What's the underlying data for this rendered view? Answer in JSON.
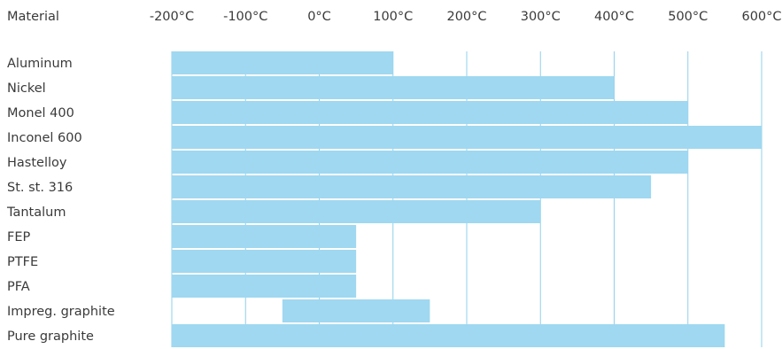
{
  "chart_data": {
    "type": "bar",
    "orientation": "horizontal-range",
    "category_header": "Material",
    "x_tick_labels": [
      "-200°C",
      "-100°C",
      "0°C",
      "100°C",
      "200°C",
      "300°C",
      "400°C",
      "500°C",
      "600°C"
    ],
    "x_ticks": [
      -200,
      -100,
      0,
      100,
      200,
      300,
      400,
      500,
      600
    ],
    "xlim": [
      -200,
      600
    ],
    "grid": "vertical",
    "bar_color": "#9fd8f0",
    "grid_color": "#8fd0ec",
    "categories": [
      "Aluminum",
      "Nickel",
      "Monel 400",
      "Inconel 600",
      "Hastelloy",
      "St. st. 316",
      "Tantalum",
      "FEP",
      "PTFE",
      "PFA",
      "Impreg. graphite",
      "Pure graphite"
    ],
    "ranges": [
      [
        -200,
        100
      ],
      [
        -200,
        400
      ],
      [
        -200,
        500
      ],
      [
        -200,
        600
      ],
      [
        -200,
        500
      ],
      [
        -200,
        450
      ],
      [
        -200,
        300
      ],
      [
        -200,
        50
      ],
      [
        -200,
        50
      ],
      [
        -200,
        50
      ],
      [
        -50,
        150
      ],
      [
        -200,
        550
      ]
    ]
  }
}
